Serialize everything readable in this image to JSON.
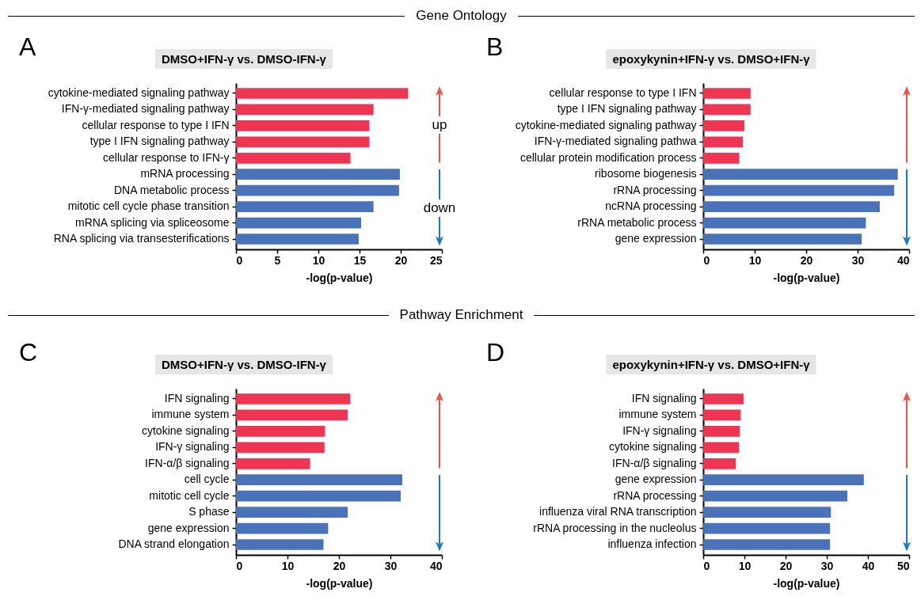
{
  "chart_data": [
    {
      "type": "bar",
      "orientation": "horizontal",
      "title": "DMSO+IFN-γ vs. DMSO-IFN-γ",
      "xlabel": "-log(p-value)",
      "annotations": [
        "A",
        "Gene Ontology",
        "up",
        "down"
      ],
      "categories": [
        "cytokine-mediated signaling pathway",
        "IFN-γ-mediated signaling pathway",
        "cellular response to type I IFN",
        "type I IFN signaling pathway",
        "cellular response to IFN-γ",
        "mRNA processing",
        "DNA metabolic process",
        "mitotic cell cycle phase transition",
        "mRNA splicing via spliceosome",
        "RNA splicing via transesterifications"
      ],
      "values": [
        20.9,
        16.7,
        16.2,
        16.2,
        13.9,
        19.9,
        19.8,
        16.7,
        15.2,
        14.9
      ],
      "colors": [
        "#ee3553",
        "#ee3553",
        "#ee3553",
        "#ee3553",
        "#ee3553",
        "#4a72b8",
        "#4a72b8",
        "#4a72b8",
        "#4a72b8",
        "#4a72b8"
      ],
      "xlim": [
        0,
        25
      ],
      "xticks": [
        0,
        5,
        10,
        15,
        20,
        25
      ]
    },
    {
      "type": "bar",
      "orientation": "horizontal",
      "title": "epoxykynin+IFN-γ vs. DMSO+IFN-γ",
      "xlabel": "-log(p-value)",
      "annotations": [
        "B"
      ],
      "categories": [
        "cellular response to type I IFN",
        "type I IFN signaling pathway",
        "cytokine-mediated signaling pathway",
        "IFN-γ-mediated signaling pathwa",
        "cellular protein modification process",
        "ribosome biogenesis",
        "rRNA processing",
        "ncRNA processing",
        "rRNA metabolic process",
        "gene expression"
      ],
      "values": [
        9.2,
        9.2,
        8.0,
        7.7,
        7.0,
        37.8,
        37.1,
        34.3,
        31.6,
        30.8
      ],
      "colors": [
        "#ee3553",
        "#ee3553",
        "#ee3553",
        "#ee3553",
        "#ee3553",
        "#4a72b8",
        "#4a72b8",
        "#4a72b8",
        "#4a72b8",
        "#4a72b8"
      ],
      "xlim": [
        0,
        40
      ],
      "xticks": [
        0,
        10,
        20,
        30,
        40
      ]
    },
    {
      "type": "bar",
      "orientation": "horizontal",
      "title": "DMSO+IFN-γ vs. DMSO-IFN-γ",
      "xlabel": "-log(p-value)",
      "annotations": [
        "C",
        "Pathway Enrichment"
      ],
      "categories": [
        "IFN signaling",
        "immune system",
        "cytokine signaling",
        "IFN-γ signaling",
        "IFN-α/β signaling",
        "cell cycle",
        "mitotic cell cycle",
        "S phase",
        "gene expression",
        "DNA strand elongation"
      ],
      "values": [
        22.2,
        21.7,
        17.3,
        17.2,
        14.4,
        32.3,
        32.0,
        21.7,
        17.9,
        17.0
      ],
      "colors": [
        "#ee3553",
        "#ee3553",
        "#ee3553",
        "#ee3553",
        "#ee3553",
        "#4a72b8",
        "#4a72b8",
        "#4a72b8",
        "#4a72b8",
        "#4a72b8"
      ],
      "xlim": [
        0,
        40
      ],
      "xticks": [
        0,
        10,
        20,
        30,
        40
      ]
    },
    {
      "type": "bar",
      "orientation": "horizontal",
      "title": "epoxykynin+IFN-γ vs. DMSO+IFN-γ",
      "xlabel": "-log(p-value)",
      "annotations": [
        "D"
      ],
      "categories": [
        "IFN signaling",
        "immune system",
        "IFN-γ signaling",
        "cytokine signaling",
        "IFN-α/β signaling",
        "gene expression",
        "rRNA processing",
        "influenza viral RNA transcription",
        "rRNA processing in the nucleolus",
        "influenza infection"
      ],
      "values": [
        9.8,
        9.1,
        8.9,
        8.7,
        7.9,
        39.0,
        35.0,
        31.0,
        30.8,
        30.8
      ],
      "colors": [
        "#ee3553",
        "#ee3553",
        "#ee3553",
        "#ee3553",
        "#ee3553",
        "#4a72b8",
        "#4a72b8",
        "#4a72b8",
        "#4a72b8",
        "#4a72b8"
      ],
      "xlim": [
        0,
        50
      ],
      "xticks": [
        0,
        10,
        20,
        30,
        40,
        50
      ]
    }
  ]
}
